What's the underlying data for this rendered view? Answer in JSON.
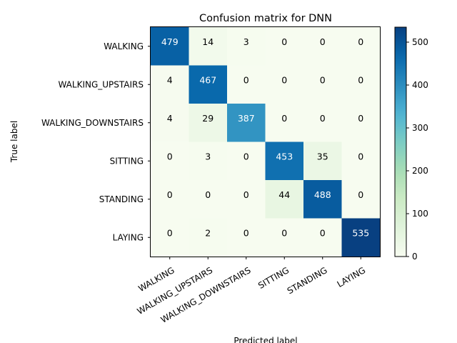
{
  "chart_data": {
    "type": "heatmap",
    "title": "Confusion matrix for DNN",
    "xlabel": "Predicted label",
    "ylabel": "True label",
    "row_labels": [
      "WALKING",
      "WALKING_UPSTAIRS",
      "WALKING_DOWNSTAIRS",
      "SITTING",
      "STANDING",
      "LAYING"
    ],
    "col_labels": [
      "WALKING",
      "WALKING_UPSTAIRS",
      "WALKING_DOWNSTAIRS",
      "SITTING",
      "STANDING",
      "LAYING"
    ],
    "values": [
      [
        479,
        14,
        3,
        0,
        0,
        0
      ],
      [
        4,
        467,
        0,
        0,
        0,
        0
      ],
      [
        4,
        29,
        387,
        0,
        0,
        0
      ],
      [
        0,
        3,
        0,
        453,
        35,
        0
      ],
      [
        0,
        0,
        0,
        44,
        488,
        0
      ],
      [
        0,
        2,
        0,
        0,
        0,
        535
      ]
    ],
    "color_range": [
      0,
      535
    ],
    "colormap": "GnBu",
    "colorbar_ticks": [
      0,
      100,
      200,
      300,
      400,
      500
    ],
    "grid": false
  }
}
